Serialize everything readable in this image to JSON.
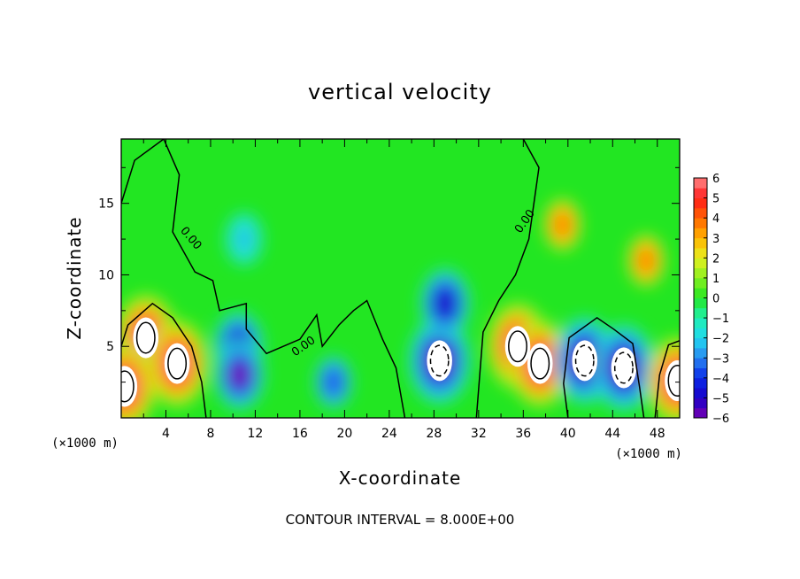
{
  "chart_data": {
    "type": "heatmap",
    "title": "vertical velocity",
    "xlabel": "X-coordinate",
    "ylabel": "Z-coordinate",
    "x_unit_label": "(×1000 m)",
    "xlim": [
      0,
      50
    ],
    "ylim": [
      0,
      19.5
    ],
    "x_ticks": [
      4,
      8,
      12,
      16,
      20,
      24,
      28,
      32,
      36,
      40,
      44,
      48
    ],
    "y_ticks": [
      5,
      10,
      15
    ],
    "colorbar": {
      "range": [
        -6,
        6
      ],
      "ticks": [
        6,
        5,
        4,
        3,
        2,
        1,
        0,
        -1,
        -2,
        -3,
        -4,
        -5,
        -6
      ],
      "tick_labels": [
        "6",
        "5",
        "4",
        "3",
        "2",
        "1",
        "0",
        "−1",
        "−2",
        "−3",
        "−4",
        "−5",
        "−6"
      ],
      "saturated_low_color": "#ffffff",
      "saturated_high_color": "#ffffff"
    },
    "zero_contour_label": "0.00",
    "note": "CONTOUR INTERVAL = 8.000E+00",
    "contour_interval": 8.0,
    "features": [
      {
        "sign": "up",
        "x": 2.2,
        "z": 5.6,
        "peak": 9
      },
      {
        "sign": "up",
        "x": 5.0,
        "z": 3.8,
        "peak": 8
      },
      {
        "sign": "up",
        "x": 0.3,
        "z": 2.2,
        "peak": 9
      },
      {
        "sign": "down",
        "x": 10.5,
        "z": 5.0,
        "peak": -5
      },
      {
        "sign": "down",
        "x": 10.6,
        "z": 3.0,
        "peak": -6
      },
      {
        "sign": "down",
        "x": 11.0,
        "z": 12.5,
        "peak": -2.5
      },
      {
        "sign": "down",
        "x": 19.0,
        "z": 2.5,
        "peak": -4
      },
      {
        "sign": "down",
        "x": 28.5,
        "z": 4.0,
        "peak": -9
      },
      {
        "sign": "down",
        "x": 29.0,
        "z": 8.0,
        "peak": -5
      },
      {
        "sign": "up",
        "x": 35.5,
        "z": 5.0,
        "peak": 9
      },
      {
        "sign": "up",
        "x": 37.5,
        "z": 3.8,
        "peak": 9
      },
      {
        "sign": "down",
        "x": 41.5,
        "z": 4.0,
        "peak": -9
      },
      {
        "sign": "down",
        "x": 45.0,
        "z": 3.5,
        "peak": -9
      },
      {
        "sign": "up",
        "x": 39.5,
        "z": 13.5,
        "peak": 4
      },
      {
        "sign": "up",
        "x": 47.0,
        "z": 11.0,
        "peak": 4
      },
      {
        "sign": "up",
        "x": 49.8,
        "z": 2.6,
        "peak": 9
      }
    ]
  }
}
